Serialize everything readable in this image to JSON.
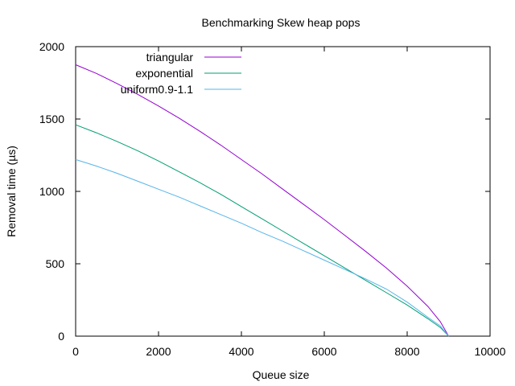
{
  "chart_data": {
    "type": "line",
    "title": "Benchmarking Skew heap pops",
    "xlabel": "Queue size",
    "ylabel": "Removal time (µs)",
    "xlim": [
      0,
      10000
    ],
    "ylim": [
      0,
      2000
    ],
    "xticks": [
      0,
      2000,
      4000,
      6000,
      8000,
      10000
    ],
    "yticks": [
      0,
      500,
      1000,
      1500,
      2000
    ],
    "grid": false,
    "legend_position": "top-left",
    "series": [
      {
        "name": "triangular",
        "color": "#9400d3",
        "x": [
          0,
          500,
          1000,
          1500,
          2000,
          2500,
          3000,
          3500,
          4000,
          4500,
          5000,
          5500,
          6000,
          6500,
          7000,
          7500,
          8000,
          8500,
          8800,
          9000
        ],
        "y": [
          1875,
          1815,
          1745,
          1670,
          1590,
          1505,
          1415,
          1320,
          1220,
          1120,
          1015,
          910,
          805,
          695,
          585,
          470,
          345,
          205,
          100,
          0
        ]
      },
      {
        "name": "exponential",
        "color": "#009e73",
        "x": [
          0,
          500,
          1000,
          1500,
          2000,
          2500,
          3000,
          3500,
          4000,
          4500,
          5000,
          5500,
          6000,
          6500,
          7000,
          7500,
          8000,
          8500,
          8800,
          9000
        ],
        "y": [
          1460,
          1405,
          1345,
          1280,
          1210,
          1135,
          1060,
          980,
          895,
          810,
          725,
          640,
          555,
          470,
          385,
          300,
          215,
          120,
          60,
          0
        ]
      },
      {
        "name": "uniform0.9-1.1",
        "color": "#56b4e9",
        "x": [
          0,
          500,
          1000,
          1500,
          2000,
          2500,
          3000,
          3500,
          4000,
          4500,
          5000,
          5500,
          6000,
          6500,
          7000,
          7500,
          8000,
          8500,
          8800,
          9000
        ],
        "y": [
          1220,
          1175,
          1125,
          1070,
          1015,
          960,
          900,
          840,
          780,
          715,
          655,
          590,
          525,
          460,
          395,
          325,
          235,
          130,
          70,
          0
        ]
      }
    ]
  }
}
